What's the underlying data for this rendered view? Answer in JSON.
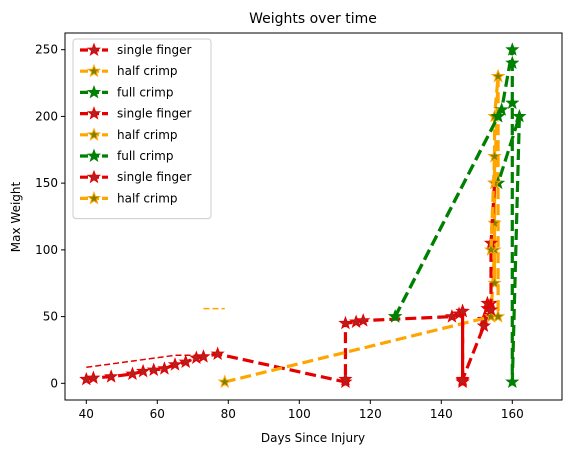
{
  "chart_data": {
    "type": "line",
    "title": "Weights over time",
    "xlabel": "Days Since Injury",
    "ylabel": "Max Weight",
    "xlim": [
      34,
      174
    ],
    "ylim": [
      -12.5,
      262.5
    ],
    "xticks": [
      40,
      60,
      80,
      100,
      120,
      140,
      160
    ],
    "yticks": [
      0,
      50,
      100,
      150,
      200,
      250
    ],
    "grid": false,
    "legend_position": "top-left",
    "series": [
      {
        "name": "single finger",
        "color": "#e50000",
        "style": "dashed-bold",
        "marker": "star",
        "points": [
          [
            40,
            3
          ],
          [
            42,
            4
          ],
          [
            47,
            5
          ],
          [
            53,
            7
          ],
          [
            56,
            9
          ],
          [
            59,
            10
          ],
          [
            62,
            11
          ],
          [
            65,
            14
          ],
          [
            68,
            16
          ],
          [
            71,
            19
          ],
          [
            73,
            20
          ],
          [
            77,
            22
          ],
          [
            113,
            1
          ],
          [
            113,
            3
          ],
          [
            113,
            45
          ],
          [
            116,
            46
          ],
          [
            118,
            47
          ],
          [
            143,
            50
          ],
          [
            145,
            52
          ],
          [
            146,
            54
          ],
          [
            146,
            1
          ],
          [
            146,
            3
          ],
          [
            152,
            43
          ],
          [
            152,
            48
          ],
          [
            153,
            56
          ],
          [
            153,
            60
          ],
          [
            154,
            60
          ]
        ]
      },
      {
        "name": "half crimp",
        "color": "#ffa500",
        "style": "dashed-bold",
        "marker": "star",
        "points": [
          [
            79,
            1
          ],
          [
            154,
            50
          ],
          [
            155,
            100
          ],
          [
            155,
            150
          ],
          [
            155,
            170
          ],
          [
            155,
            120
          ],
          [
            155,
            75
          ],
          [
            155,
            200
          ],
          [
            156,
            230
          ],
          [
            156,
            50
          ]
        ]
      },
      {
        "name": "full crimp",
        "color": "#008000",
        "style": "dashed-bold",
        "marker": "star",
        "points": [
          [
            127,
            50
          ],
          [
            156,
            200
          ],
          [
            157,
            205
          ],
          [
            160,
            250
          ],
          [
            160,
            240
          ],
          [
            160,
            210
          ],
          [
            160,
            1
          ],
          [
            162,
            200
          ],
          [
            156,
            150
          ]
        ]
      },
      {
        "name": "single finger",
        "color": "#e50000",
        "style": "dashed-bold",
        "marker": "star",
        "points": [
          [
            154,
            55
          ],
          [
            154,
            105
          ],
          [
            155,
            150
          ]
        ]
      },
      {
        "name": "half crimp",
        "color": "#ffa500",
        "style": "dashed-bold",
        "marker": "star",
        "points": [
          [
            155,
            150
          ],
          [
            156,
            230
          ]
        ]
      },
      {
        "name": "full crimp",
        "color": "#008000",
        "style": "dashed-bold",
        "marker": "star",
        "points": [
          [
            127,
            50
          ],
          [
            156,
            200
          ]
        ]
      },
      {
        "name": "single finger",
        "color": "#e50000",
        "style": "dashed-bold",
        "marker": "star",
        "points": [
          [
            146,
            2
          ],
          [
            146,
            54
          ]
        ]
      },
      {
        "name": "half crimp",
        "color": "#ffa500",
        "style": "dashed-bold",
        "marker": "star",
        "points": [
          [
            154,
            100
          ],
          [
            155,
            170
          ]
        ]
      }
    ],
    "trend_lines": [
      {
        "color": "#e50000",
        "style": "dashed-thin",
        "points": [
          [
            40,
            12
          ],
          [
            65,
            21
          ],
          [
            72,
            21
          ]
        ]
      },
      {
        "color": "#ffa500",
        "style": "dashed-thin",
        "points": [
          [
            73,
            56
          ],
          [
            79,
            56
          ]
        ]
      }
    ]
  }
}
